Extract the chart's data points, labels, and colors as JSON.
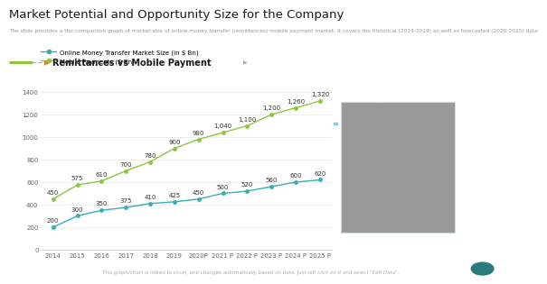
{
  "title": "Market Potential and Opportunity Size for the Company",
  "subtitle": "The slide provides a the comparison graph of market size of online money transfer (remittances) mobile payment market. It covers the historical (2014-2019) as well as forecasted (2020-2025) data",
  "section_title": "Remittances vs Mobile Payment",
  "footer": "This graph/chart is linked to excel, and changes automatically based on data. Just left click on it and select \"Edit Data\".",
  "x_labels": [
    "2014",
    "2015",
    "2016",
    "2017",
    "2018",
    "2019",
    "2020P",
    "2021 P",
    "2022 P",
    "2023 P",
    "2024 P",
    "2025 P"
  ],
  "online_money": [
    200,
    300,
    350,
    375,
    410,
    425,
    450,
    500,
    520,
    560,
    600,
    620
  ],
  "mobile_payments": [
    450,
    575,
    610,
    700,
    780,
    900,
    980,
    1040,
    1100,
    1200,
    1260,
    1320
  ],
  "online_money_color": "#3aacb4",
  "mobile_payments_color": "#8dc63f",
  "legend_label_1": "Online Money Transfer Market Size (in $ Bn)",
  "legend_label_2": "Mobile Payments ($ Bn)",
  "ylim": [
    0,
    1500
  ],
  "yticks": [
    0,
    200,
    400,
    600,
    800,
    1000,
    1200,
    1400
  ],
  "bg_color": "#ffffff",
  "title_fontsize": 9.5,
  "subtitle_fontsize": 4.2,
  "section_fontsize": 7,
  "legend_fontsize": 5,
  "tick_fontsize": 5,
  "annotation_fontsize": 5,
  "footer_fontsize": 4,
  "section_bar_color": "#8dc63f",
  "section_arrow_color": "#f47920",
  "grid_color": "#e8e8e8",
  "img_border_color": "#c8dfe0",
  "img_bg_color": "#dde8ea",
  "filter_icon_color": "#3aacb4",
  "circle_color": "#2a7a80"
}
